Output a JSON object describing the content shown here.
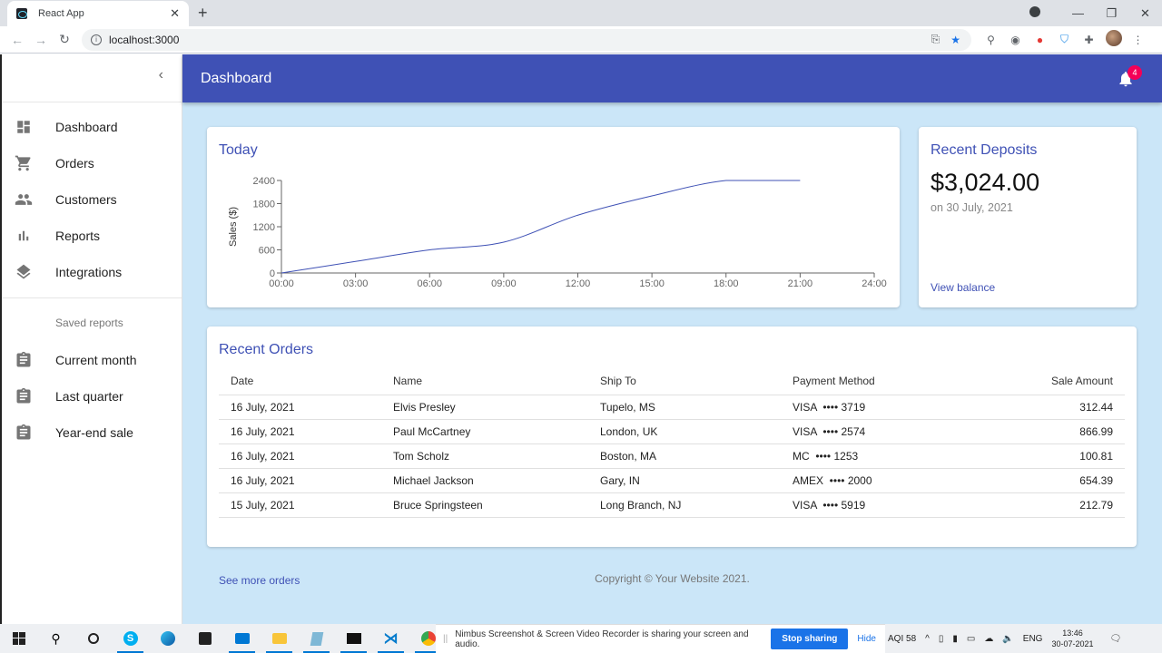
{
  "browser": {
    "tab_title": "React App",
    "url": "localhost:3000",
    "new_tab": "+",
    "tab_close": "✕",
    "window_controls": {
      "minimize": "—",
      "restore": "❐",
      "close": "✕"
    }
  },
  "sidebar": {
    "collapse_glyph": "‹",
    "main_items": [
      {
        "label": "Dashboard",
        "icon": "dashboard-icon"
      },
      {
        "label": "Orders",
        "icon": "cart-icon"
      },
      {
        "label": "Customers",
        "icon": "people-icon"
      },
      {
        "label": "Reports",
        "icon": "bar-chart-icon"
      },
      {
        "label": "Integrations",
        "icon": "layers-icon"
      }
    ],
    "saved_header": "Saved reports",
    "saved_items": [
      {
        "label": "Current month",
        "icon": "assignment-icon"
      },
      {
        "label": "Last quarter",
        "icon": "assignment-icon"
      },
      {
        "label": "Year-end sale",
        "icon": "assignment-icon"
      }
    ]
  },
  "appbar": {
    "title": "Dashboard",
    "notifications_count": "4",
    "color": "#3f51b5",
    "badge_color": "#f50057"
  },
  "chart_card": {
    "title": "Today"
  },
  "chart_data": {
    "type": "line",
    "title": "Today",
    "xlabel": "",
    "ylabel": "Sales ($)",
    "x": [
      "00:00",
      "03:00",
      "06:00",
      "09:00",
      "12:00",
      "15:00",
      "18:00",
      "21:00",
      "24:00"
    ],
    "values": [
      0,
      300,
      600,
      800,
      1500,
      2000,
      2400,
      2400,
      null
    ],
    "yticks": [
      0,
      600,
      1200,
      1800,
      2400
    ],
    "ylim": [
      0,
      2400
    ],
    "grid": false,
    "legend": "none",
    "line_color": "#3f51b5"
  },
  "deposits": {
    "title": "Recent Deposits",
    "amount": "$3,024.00",
    "date": "on 30 July, 2021",
    "link": "View balance"
  },
  "orders": {
    "title": "Recent Orders",
    "columns": [
      "Date",
      "Name",
      "Ship To",
      "Payment Method",
      "Sale Amount"
    ],
    "rows": [
      {
        "date": "16 July, 2021",
        "name": "Elvis Presley",
        "ship_to": "Tupelo, MS",
        "payment": "VISA  •••• 3719",
        "amount": "312.44"
      },
      {
        "date": "16 July, 2021",
        "name": "Paul McCartney",
        "ship_to": "London, UK",
        "payment": "VISA  •••• 2574",
        "amount": "866.99"
      },
      {
        "date": "16 July, 2021",
        "name": "Tom Scholz",
        "ship_to": "Boston, MA",
        "payment": "MC  •••• 1253",
        "amount": "100.81"
      },
      {
        "date": "16 July, 2021",
        "name": "Michael Jackson",
        "ship_to": "Gary, IN",
        "payment": "AMEX  •••• 2000",
        "amount": "654.39"
      },
      {
        "date": "15 July, 2021",
        "name": "Bruce Springsteen",
        "ship_to": "Long Branch, NJ",
        "payment": "VISA  •••• 5919",
        "amount": "212.79"
      }
    ],
    "see_more": "See more orders"
  },
  "footer": {
    "copyright": "Copyright © Your Website 2021."
  },
  "taskbar": {
    "share_message": "Nimbus Screenshot & Screen Video Recorder is sharing your screen and audio.",
    "stop_sharing": "Stop sharing",
    "hide": "Hide",
    "aqi": "AQI 58",
    "language": "ENG",
    "time": "13:46",
    "date": "30-07-2021"
  }
}
